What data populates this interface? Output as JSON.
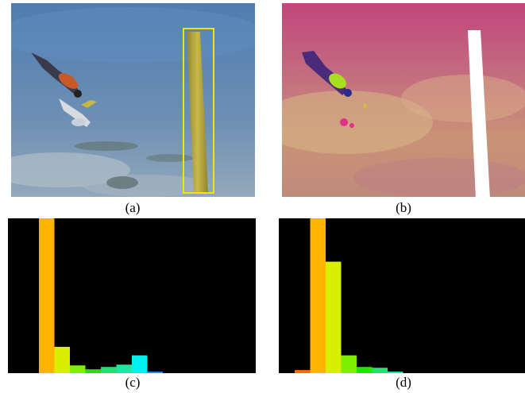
{
  "figure": {
    "panels": [
      {
        "id": "a",
        "caption": "(a)"
      },
      {
        "id": "b",
        "caption": "(b)"
      },
      {
        "id": "c",
        "caption": "(c)"
      },
      {
        "id": "d",
        "caption": "(d)"
      }
    ]
  },
  "colors": {
    "sky_top": "#4f7db0",
    "sky_bottom": "#8fa4b8",
    "bbox": "#f2e600",
    "pole": "#b5a53a",
    "flow_magenta": "#c04070",
    "flow_tan": "#c9a07a",
    "histogram_bg": "#000000"
  },
  "chart_data": [
    {
      "type": "bar",
      "panel": "c",
      "values": [
        1.0,
        0.17,
        0.05,
        0.025,
        0.04,
        0.055,
        0.115,
        0.01
      ],
      "colors": [
        "#ffb400",
        "#d8f000",
        "#7cf000",
        "#28e000",
        "#20e070",
        "#18e8a0",
        "#00f0f0",
        "#1a8cff"
      ],
      "ylim": [
        0,
        1
      ]
    },
    {
      "type": "bar",
      "panel": "d",
      "values": [
        0.02,
        1.0,
        0.72,
        0.115,
        0.04,
        0.035,
        0.01
      ],
      "colors": [
        "#ff6a00",
        "#ffb400",
        "#d8f000",
        "#7cf000",
        "#28e000",
        "#20e070",
        "#18e8a0"
      ],
      "ylim": [
        0,
        1
      ]
    }
  ]
}
